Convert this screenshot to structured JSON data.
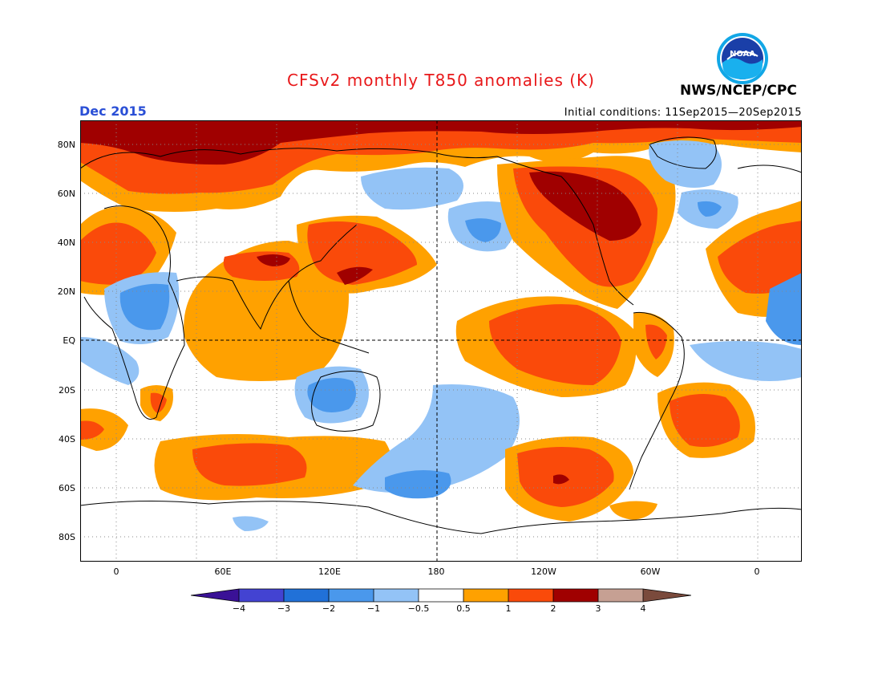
{
  "title": "CFSv2 monthly T850 anomalies (K)",
  "month": "Dec 2015",
  "initial_conditions": "Initial conditions: 11Sep2015—20Sep2015",
  "agency": "NWS/NCEP/CPC",
  "logo_text": "NOAA",
  "lat_labels": [
    "80N",
    "60N",
    "40N",
    "20N",
    "EQ",
    "20S",
    "40S",
    "60S",
    "80S"
  ],
  "lon_labels": [
    "0",
    "60E",
    "120E",
    "180",
    "120W",
    "60W",
    "0"
  ],
  "colorbar": {
    "labels": [
      "−4",
      "−3",
      "−2",
      "−1",
      "−0.5",
      "0.5",
      "1",
      "2",
      "3",
      "4"
    ],
    "colors": [
      "#3a1196",
      "#4343d2",
      "#2171d8",
      "#4a98ec",
      "#93c3f6",
      "#ffffff",
      "#ffa100",
      "#fa4a0a",
      "#a00000",
      "#c6a093",
      "#7a4a3c"
    ]
  },
  "colors": {
    "title": "#e8181a",
    "month": "#2a4fd6"
  }
}
